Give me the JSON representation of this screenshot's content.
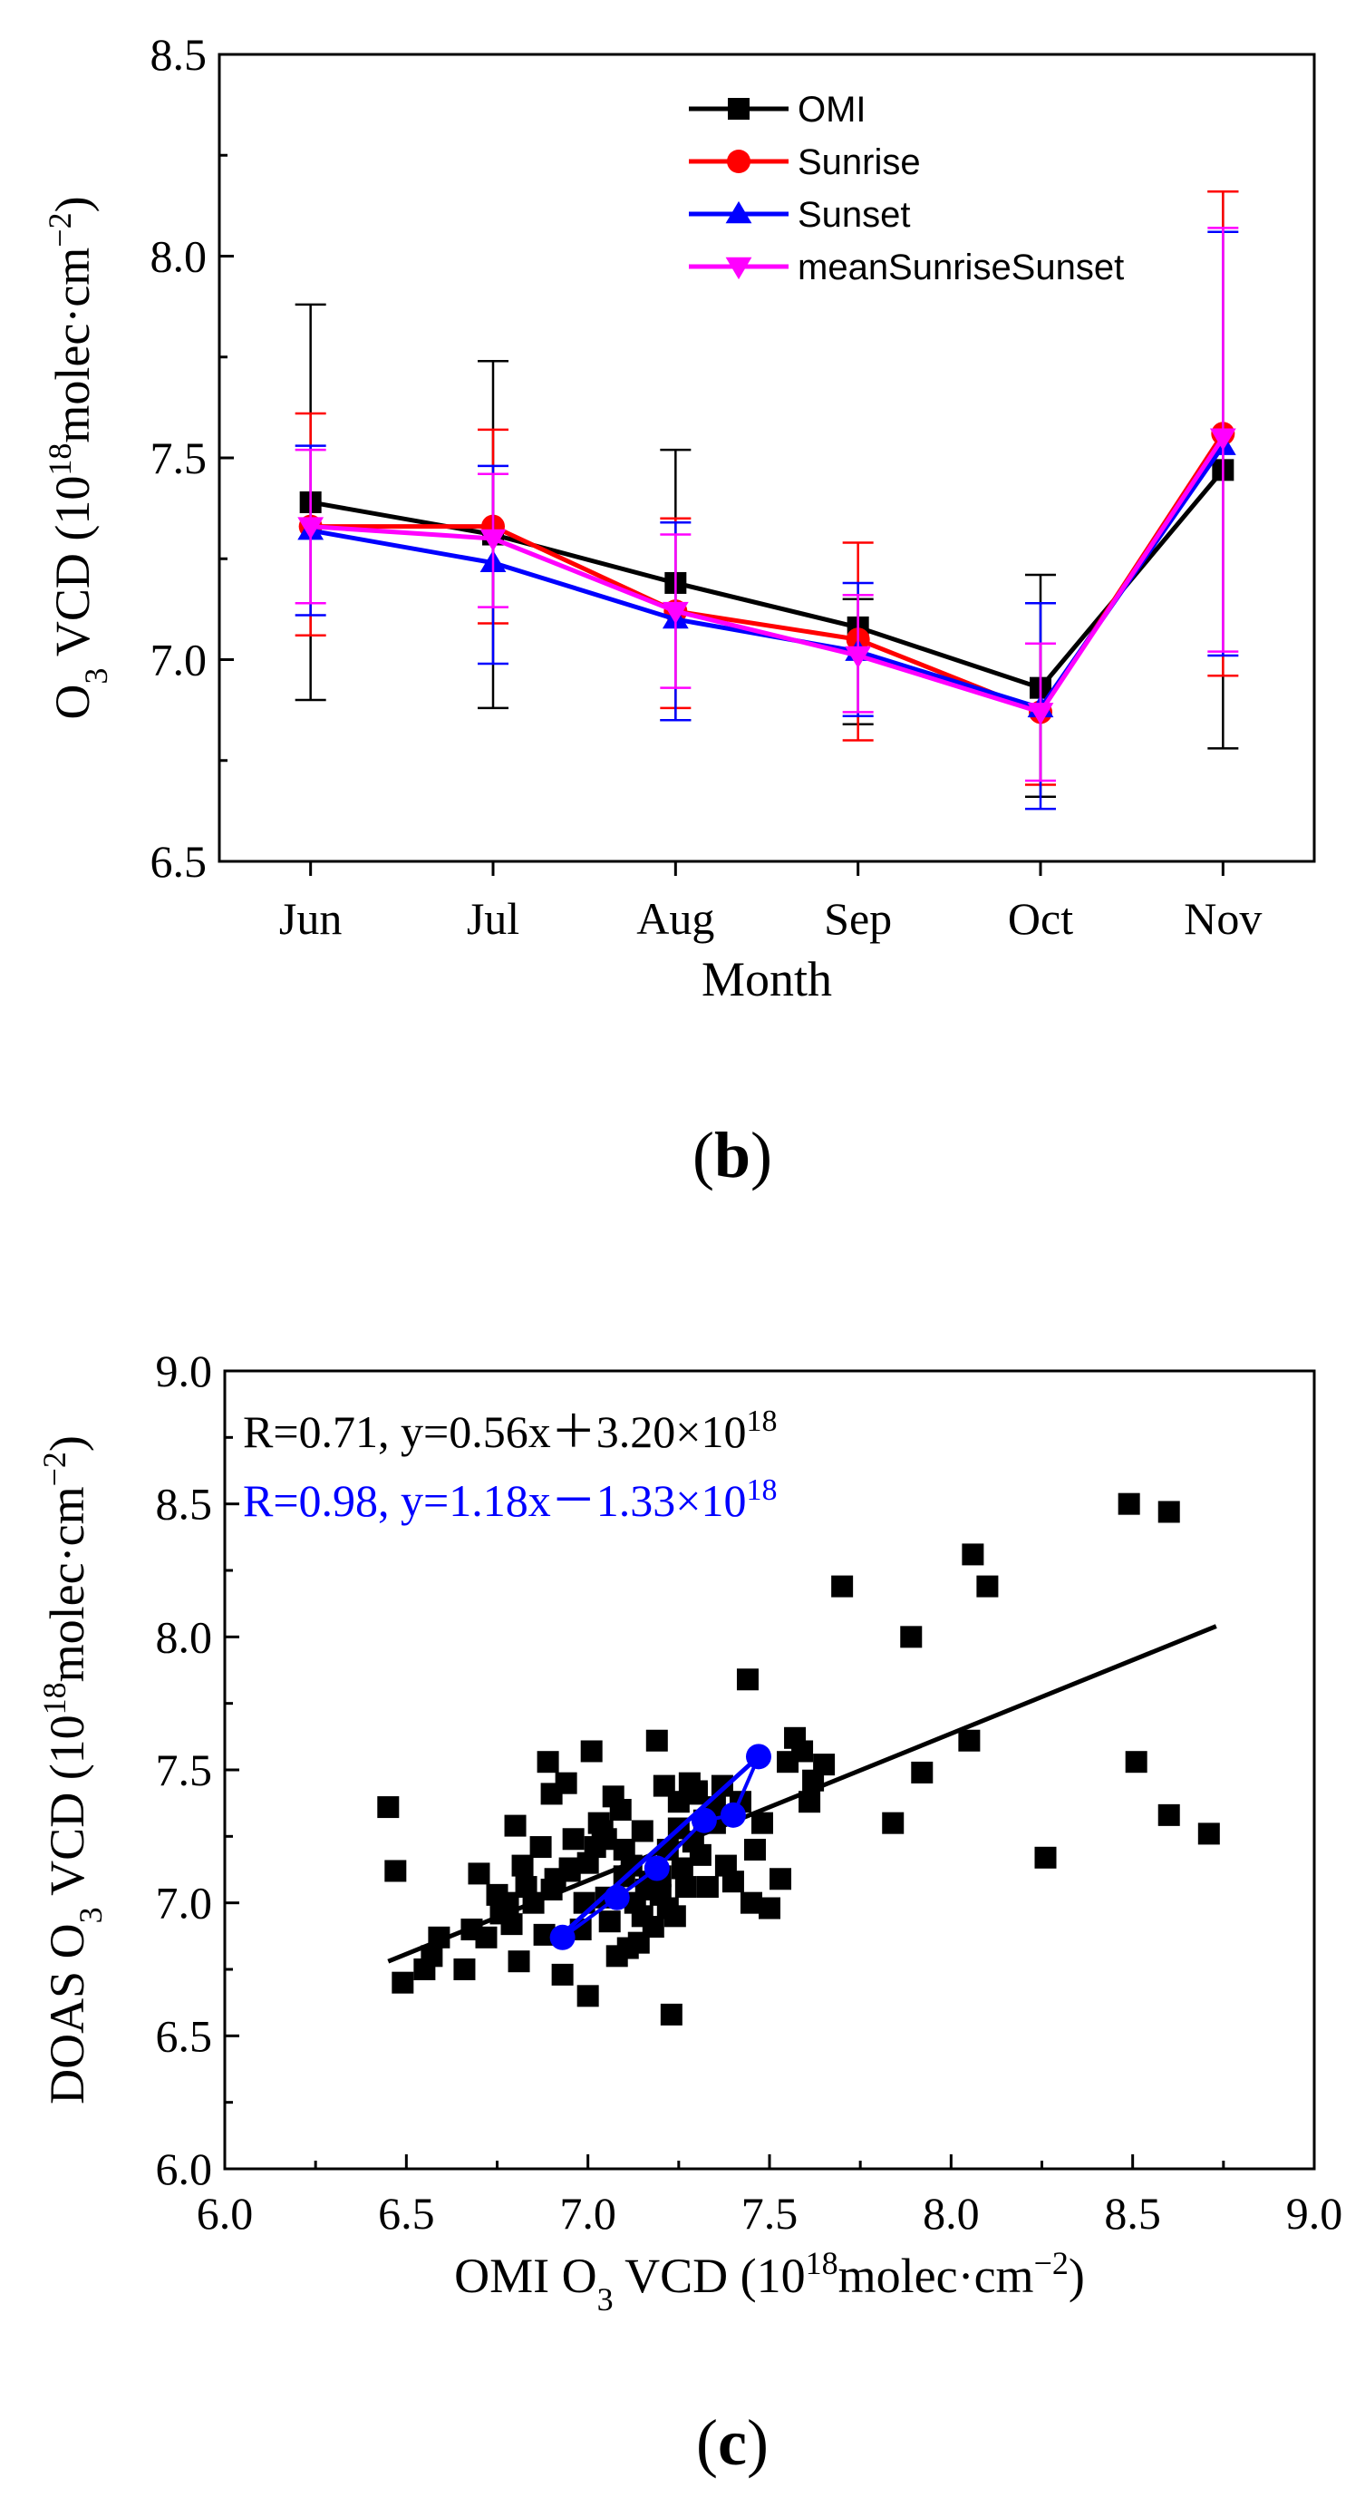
{
  "panel_b": {
    "label_letter": "b",
    "chart_data": {
      "type": "line",
      "categories": [
        "Jun",
        "Jul",
        "Aug",
        "Sep",
        "Oct",
        "Nov"
      ],
      "xlabel": "Month",
      "ylabel_parts": {
        "pre": "O",
        "sub": "3",
        "mid": " VCD (10",
        "sup1": "18",
        "unit": "molec·cm",
        "sup2": "−2",
        "post": ")"
      },
      "ylim": [
        6.5,
        8.5
      ],
      "yticks": [
        "6.5",
        "7.0",
        "7.5",
        "8.0",
        "8.5"
      ],
      "legend_position": "top-right",
      "series": [
        {
          "name": "OMI",
          "color": "#000000",
          "marker": "square",
          "values": [
            7.39,
            7.31,
            7.19,
            7.08,
            6.93,
            7.47
          ],
          "err_low": [
            6.9,
            6.88,
            6.85,
            6.84,
            6.66,
            6.78
          ],
          "err_high": [
            7.88,
            7.74,
            7.52,
            7.15,
            7.21,
            8.16
          ]
        },
        {
          "name": "Sunrise",
          "color": "#ff0000",
          "marker": "circle",
          "values": [
            7.33,
            7.33,
            7.12,
            7.05,
            6.87,
            7.56
          ],
          "err_low": [
            7.06,
            7.09,
            6.88,
            6.8,
            6.69,
            6.96
          ],
          "err_high": [
            7.61,
            7.57,
            7.35,
            7.29,
            7.04,
            8.16
          ]
        },
        {
          "name": "Sunset",
          "color": "#0000ff",
          "marker": "triangle-up",
          "values": [
            7.32,
            7.24,
            7.1,
            7.02,
            6.88,
            7.53
          ],
          "err_low": [
            7.11,
            6.99,
            6.85,
            6.86,
            6.63,
            7.01
          ],
          "err_high": [
            7.53,
            7.48,
            7.34,
            7.19,
            7.14,
            8.06
          ]
        },
        {
          "name": "meanSunriseSunset",
          "color": "#ff00ff",
          "marker": "triangle-down",
          "values": [
            7.33,
            7.3,
            7.12,
            7.01,
            6.87,
            7.55
          ],
          "err_low": [
            7.14,
            7.13,
            6.93,
            6.87,
            6.7,
            7.02
          ],
          "err_high": [
            7.52,
            7.46,
            7.31,
            7.16,
            7.04,
            8.07
          ]
        }
      ]
    }
  },
  "panel_c": {
    "label_letter": "c",
    "chart_data": {
      "type": "scatter",
      "xlim": [
        6.0,
        9.0
      ],
      "ylim": [
        6.0,
        9.0
      ],
      "xticks": [
        "6.0",
        "6.5",
        "7.0",
        "7.5",
        "8.0",
        "8.5",
        "9.0"
      ],
      "yticks": [
        "6.0",
        "6.5",
        "7.0",
        "7.5",
        "8.0",
        "8.5",
        "9.0"
      ],
      "xlabel_parts": {
        "pre": "OMI O",
        "sub": "3",
        "mid": " VCD (10",
        "sup1": "18",
        "unit": "molec·cm",
        "sup2": "−2",
        "post": ")"
      },
      "ylabel_parts": {
        "pre": "DOAS O",
        "sub": "3",
        "mid": " VCD (10",
        "sup1": "18",
        "unit": "molec·cm",
        "sup2": "−2",
        "post": ")"
      },
      "annotations": [
        {
          "text": "R=0.71, y=0.56x＋3.20×10",
          "sup": "18",
          "color": "#000000"
        },
        {
          "text": "R=0.98, y=1.18x－1.33×10",
          "sup": "18",
          "color": "#0000ff"
        }
      ],
      "fit_lines": [
        {
          "color": "#000000",
          "x": [
            6.45,
            8.73
          ],
          "y": [
            6.78,
            8.04
          ]
        },
        {
          "color": "#0000ff",
          "x": [
            6.92,
            7.47
          ],
          "y": [
            6.87,
            7.55
          ]
        }
      ],
      "series": [
        {
          "color": "#000000",
          "marker": "square",
          "x": [
            6.45,
            6.47,
            6.49,
            6.55,
            6.57,
            6.59,
            6.66,
            6.68,
            6.7,
            6.72,
            6.75,
            6.76,
            6.78,
            6.79,
            6.8,
            6.81,
            6.82,
            6.83,
            6.85,
            6.87,
            6.88,
            6.89,
            6.9,
            6.91,
            6.93,
            6.94,
            6.95,
            6.96,
            6.98,
            6.99,
            7.0,
            7.01,
            7.02,
            7.03,
            7.04,
            7.05,
            7.06,
            7.07,
            7.08,
            7.09,
            7.1,
            7.11,
            7.12,
            7.13,
            7.14,
            7.15,
            7.16,
            7.17,
            7.18,
            7.19,
            7.2,
            7.21,
            7.22,
            7.22,
            7.23,
            7.24,
            7.25,
            7.26,
            7.27,
            7.28,
            7.29,
            7.3,
            7.31,
            7.32,
            7.33,
            7.35,
            7.37,
            7.38,
            7.4,
            7.42,
            7.44,
            7.46,
            7.48,
            7.5,
            7.53,
            7.55,
            7.57,
            7.59,
            7.61,
            7.62,
            7.65,
            7.7,
            7.84,
            7.89,
            7.92,
            8.05,
            8.06,
            8.1,
            8.26,
            8.49,
            8.51,
            8.6,
            8.6,
            8.71,
            7.0,
            7.05,
            7.1,
            7.15,
            7.25,
            7.35,
            6.9,
            6.95,
            7.2,
            7.3,
            7.45
          ],
          "y": [
            7.36,
            7.12,
            6.7,
            6.75,
            6.8,
            6.87,
            6.75,
            6.9,
            7.11,
            6.87,
            7.03,
            6.96,
            7.0,
            6.92,
            7.29,
            6.78,
            7.14,
            7.06,
            7.0,
            7.21,
            6.88,
            7.53,
            7.41,
            7.09,
            6.73,
            7.45,
            7.13,
            7.24,
            6.9,
            7.0,
            6.65,
            7.57,
            7.21,
            7.3,
            7.27,
            7.24,
            6.93,
            7.4,
            6.8,
            7.35,
            7.2,
            6.83,
            7.14,
            7.0,
            6.85,
            7.27,
            7.05,
            7.08,
            6.91,
            7.61,
            7.03,
            7.44,
            6.98,
            7.2,
            6.58,
            6.95,
            7.38,
            7.13,
            7.06,
            7.45,
            7.23,
            7.41,
            7.18,
            7.31,
            7.06,
            7.36,
            7.44,
            7.14,
            7.08,
            7.38,
            7.84,
            7.2,
            7.3,
            6.98,
            7.09,
            7.53,
            7.62,
            7.57,
            7.38,
            7.46,
            7.52,
            8.19,
            7.3,
            8.0,
            7.49,
            7.61,
            8.31,
            8.19,
            7.17,
            8.5,
            7.53,
            8.47,
            7.33,
            7.26,
            7.15,
            7.02,
            7.1,
            6.95,
            7.28,
            7.3,
            7.05,
            7.12,
            7.1,
            7.42,
            7.0
          ]
        },
        {
          "color": "#0000ff",
          "marker": "circle",
          "x": [
            6.93,
            7.08,
            7.19,
            7.32,
            7.4,
            7.47
          ],
          "y": [
            6.87,
            7.02,
            7.13,
            7.31,
            7.33,
            7.55
          ]
        }
      ]
    }
  }
}
